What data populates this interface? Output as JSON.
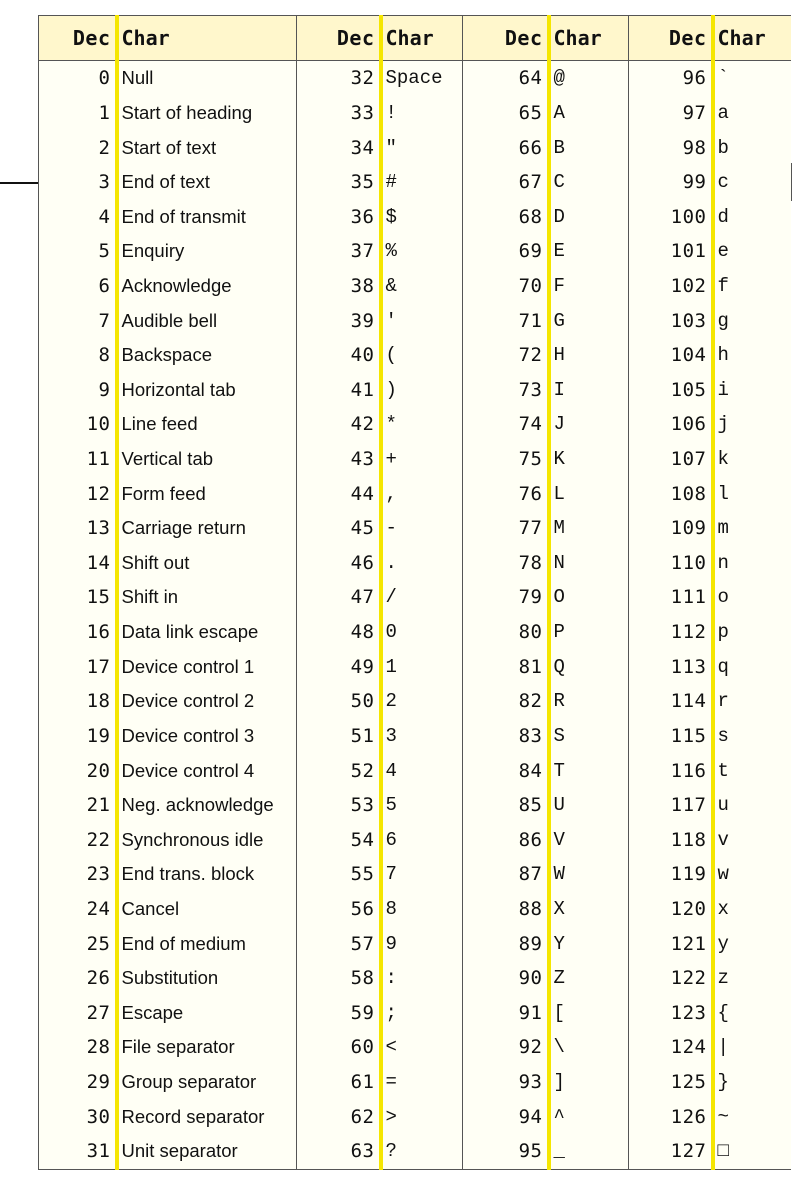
{
  "headers": {
    "dec": "Dec",
    "char": "Char"
  },
  "rows": [
    [
      [
        "0",
        "Null"
      ],
      [
        "32",
        "Space"
      ],
      [
        "64",
        "@"
      ],
      [
        "96",
        "`"
      ]
    ],
    [
      [
        "1",
        "Start of heading"
      ],
      [
        "33",
        "!"
      ],
      [
        "65",
        "A"
      ],
      [
        "97",
        "a"
      ]
    ],
    [
      [
        "2",
        "Start of text"
      ],
      [
        "34",
        "\""
      ],
      [
        "66",
        "B"
      ],
      [
        "98",
        "b"
      ]
    ],
    [
      [
        "3",
        "End of text"
      ],
      [
        "35",
        "#"
      ],
      [
        "67",
        "C"
      ],
      [
        "99",
        "c"
      ]
    ],
    [
      [
        "4",
        "End of transmit"
      ],
      [
        "36",
        "$"
      ],
      [
        "68",
        "D"
      ],
      [
        "100",
        "d"
      ]
    ],
    [
      [
        "5",
        "Enquiry"
      ],
      [
        "37",
        "%"
      ],
      [
        "69",
        "E"
      ],
      [
        "101",
        "e"
      ]
    ],
    [
      [
        "6",
        "Acknowledge"
      ],
      [
        "38",
        "&"
      ],
      [
        "70",
        "F"
      ],
      [
        "102",
        "f"
      ]
    ],
    [
      [
        "7",
        "Audible bell"
      ],
      [
        "39",
        "'"
      ],
      [
        "71",
        "G"
      ],
      [
        "103",
        "g"
      ]
    ],
    [
      [
        "8",
        "Backspace"
      ],
      [
        "40",
        "("
      ],
      [
        "72",
        "H"
      ],
      [
        "104",
        "h"
      ]
    ],
    [
      [
        "9",
        "Horizontal tab"
      ],
      [
        "41",
        ")"
      ],
      [
        "73",
        "I"
      ],
      [
        "105",
        "i"
      ]
    ],
    [
      [
        "10",
        "Line feed"
      ],
      [
        "42",
        "*"
      ],
      [
        "74",
        "J"
      ],
      [
        "106",
        "j"
      ]
    ],
    [
      [
        "11",
        "Vertical tab"
      ],
      [
        "43",
        "+"
      ],
      [
        "75",
        "K"
      ],
      [
        "107",
        "k"
      ]
    ],
    [
      [
        "12",
        "Form feed"
      ],
      [
        "44",
        ","
      ],
      [
        "76",
        "L"
      ],
      [
        "108",
        "l"
      ]
    ],
    [
      [
        "13",
        "Carriage return"
      ],
      [
        "45",
        "-"
      ],
      [
        "77",
        "M"
      ],
      [
        "109",
        "m"
      ]
    ],
    [
      [
        "14",
        "Shift out"
      ],
      [
        "46",
        "."
      ],
      [
        "78",
        "N"
      ],
      [
        "110",
        "n"
      ]
    ],
    [
      [
        "15",
        "Shift in"
      ],
      [
        "47",
        "/"
      ],
      [
        "79",
        "O"
      ],
      [
        "111",
        "o"
      ]
    ],
    [
      [
        "16",
        "Data link escape"
      ],
      [
        "48",
        "0"
      ],
      [
        "80",
        "P"
      ],
      [
        "112",
        "p"
      ]
    ],
    [
      [
        "17",
        "Device control 1"
      ],
      [
        "49",
        "1"
      ],
      [
        "81",
        "Q"
      ],
      [
        "113",
        "q"
      ]
    ],
    [
      [
        "18",
        "Device control 2"
      ],
      [
        "50",
        "2"
      ],
      [
        "82",
        "R"
      ],
      [
        "114",
        "r"
      ]
    ],
    [
      [
        "19",
        "Device control 3"
      ],
      [
        "51",
        "3"
      ],
      [
        "83",
        "S"
      ],
      [
        "115",
        "s"
      ]
    ],
    [
      [
        "20",
        "Device control 4"
      ],
      [
        "52",
        "4"
      ],
      [
        "84",
        "T"
      ],
      [
        "116",
        "t"
      ]
    ],
    [
      [
        "21",
        "Neg. acknowledge"
      ],
      [
        "53",
        "5"
      ],
      [
        "85",
        "U"
      ],
      [
        "117",
        "u"
      ]
    ],
    [
      [
        "22",
        "Synchronous idle"
      ],
      [
        "54",
        "6"
      ],
      [
        "86",
        "V"
      ],
      [
        "118",
        "v"
      ]
    ],
    [
      [
        "23",
        "End trans. block"
      ],
      [
        "55",
        "7"
      ],
      [
        "87",
        "W"
      ],
      [
        "119",
        "w"
      ]
    ],
    [
      [
        "24",
        "Cancel"
      ],
      [
        "56",
        "8"
      ],
      [
        "88",
        "X"
      ],
      [
        "120",
        "x"
      ]
    ],
    [
      [
        "25",
        "End of medium"
      ],
      [
        "57",
        "9"
      ],
      [
        "89",
        "Y"
      ],
      [
        "121",
        "y"
      ]
    ],
    [
      [
        "26",
        "Substitution"
      ],
      [
        "58",
        ":"
      ],
      [
        "90",
        "Z"
      ],
      [
        "122",
        "z"
      ]
    ],
    [
      [
        "27",
        "Escape"
      ],
      [
        "59",
        ";"
      ],
      [
        "91",
        "["
      ],
      [
        "123",
        "{"
      ]
    ],
    [
      [
        "28",
        "File separator"
      ],
      [
        "60",
        "<"
      ],
      [
        "92",
        "\\"
      ],
      [
        "124",
        "|"
      ]
    ],
    [
      [
        "29",
        "Group separator"
      ],
      [
        "61",
        "="
      ],
      [
        "93",
        "]"
      ],
      [
        "125",
        "}"
      ]
    ],
    [
      [
        "30",
        "Record separator"
      ],
      [
        "62",
        ">"
      ],
      [
        "94",
        "^"
      ],
      [
        "126",
        "~"
      ]
    ],
    [
      [
        "31",
        "Unit separator"
      ],
      [
        "63",
        "?"
      ],
      [
        "95",
        "_"
      ],
      [
        "127",
        "□"
      ]
    ]
  ],
  "colors": {
    "accent_border": "#f5e600",
    "header_bg": "#fff7cc",
    "table_bg": "#fffff5"
  }
}
